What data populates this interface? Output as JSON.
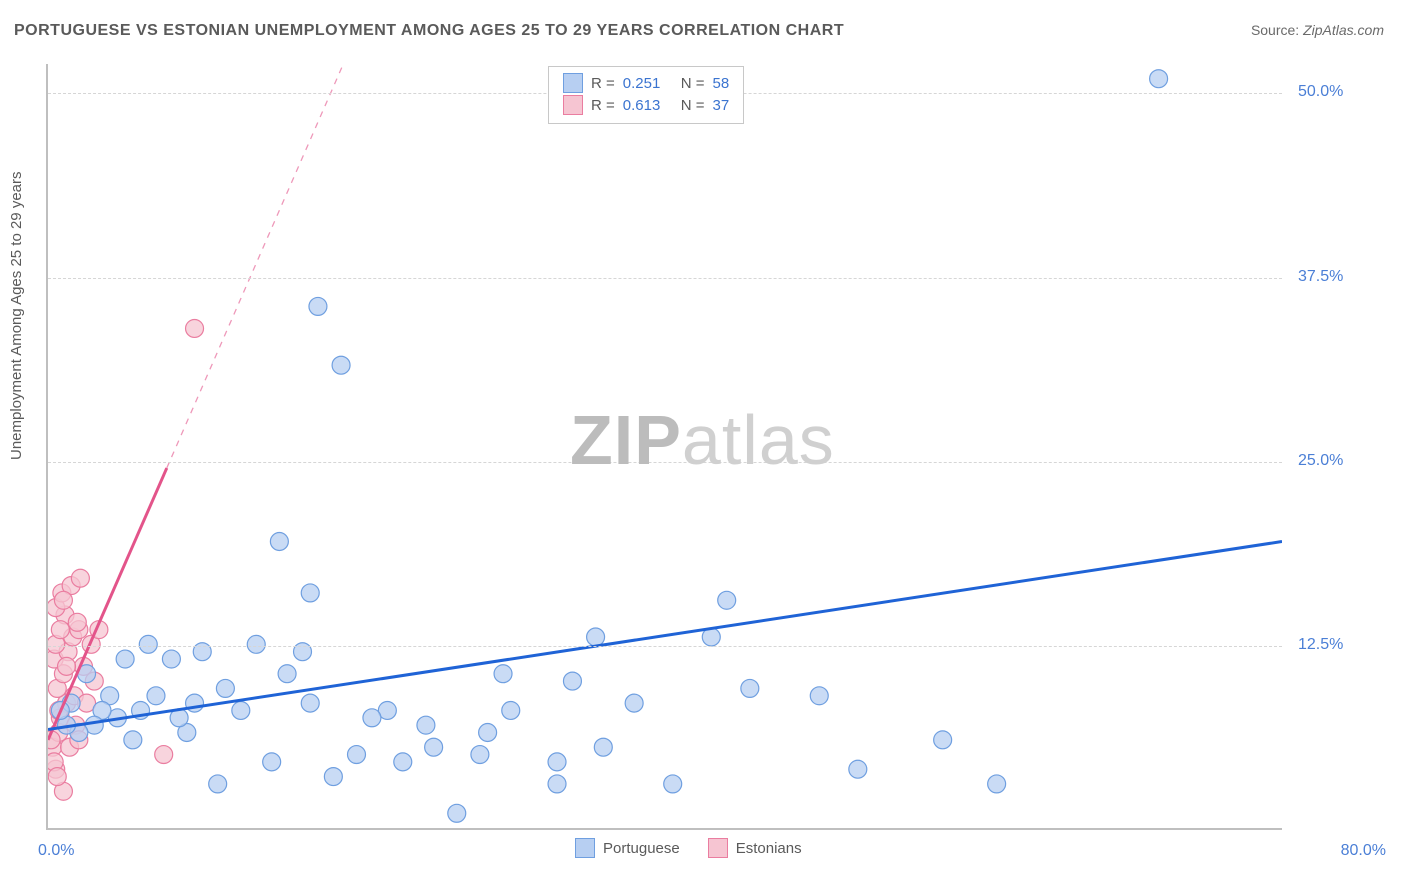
{
  "title": "PORTUGUESE VS ESTONIAN UNEMPLOYMENT AMONG AGES 25 TO 29 YEARS CORRELATION CHART",
  "source_label": "Source:",
  "source_value": "ZipAtlas.com",
  "ylabel": "Unemployment Among Ages 25 to 29 years",
  "watermark_bold": "ZIP",
  "watermark_light": "atlas",
  "chart": {
    "type": "scatter",
    "xlim": [
      0,
      80
    ],
    "ylim": [
      0,
      52
    ],
    "ytick_step": 12.5,
    "yticks": [
      "12.5%",
      "25.0%",
      "37.5%",
      "50.0%"
    ],
    "xtick_min": "0.0%",
    "xtick_max": "80.0%",
    "grid_color": "#d6d6d6",
    "axis_color": "#bfbfbf",
    "background_color": "#ffffff",
    "series": [
      {
        "name": "Portuguese",
        "marker_fill": "#b7cff2",
        "marker_stroke": "#6f9fe0",
        "marker_radius": 9,
        "line_color": "#1f63d6",
        "line_width": 3,
        "line_style": "solid",
        "reg_line": {
          "x1": 0,
          "y1": 6.7,
          "x2": 80,
          "y2": 19.5
        },
        "r": "0.251",
        "n": "58",
        "points": [
          [
            72.0,
            51.0
          ],
          [
            17.5,
            35.5
          ],
          [
            19.0,
            31.5
          ],
          [
            44.0,
            15.5
          ],
          [
            43.0,
            13.0
          ],
          [
            15.0,
            19.5
          ],
          [
            17.0,
            16.0
          ],
          [
            52.5,
            4.0
          ],
          [
            58.0,
            6.0
          ],
          [
            61.5,
            3.0
          ],
          [
            50.0,
            9.0
          ],
          [
            45.5,
            9.5
          ],
          [
            40.5,
            3.0
          ],
          [
            36.0,
            5.5
          ],
          [
            33.0,
            3.0
          ],
          [
            33.0,
            4.5
          ],
          [
            30.0,
            8.0
          ],
          [
            29.5,
            10.5
          ],
          [
            28.0,
            5.0
          ],
          [
            28.5,
            6.5
          ],
          [
            26.5,
            1.0
          ],
          [
            25.0,
            5.5
          ],
          [
            24.5,
            7.0
          ],
          [
            23.0,
            4.5
          ],
          [
            22.0,
            8.0
          ],
          [
            21.0,
            7.5
          ],
          [
            20.0,
            5.0
          ],
          [
            18.5,
            3.5
          ],
          [
            17.0,
            8.5
          ],
          [
            16.5,
            12.0
          ],
          [
            15.5,
            10.5
          ],
          [
            14.5,
            4.5
          ],
          [
            13.5,
            12.5
          ],
          [
            12.5,
            8.0
          ],
          [
            11.5,
            9.5
          ],
          [
            11.0,
            3.0
          ],
          [
            10.0,
            12.0
          ],
          [
            9.5,
            8.5
          ],
          [
            9.0,
            6.5
          ],
          [
            8.5,
            7.5
          ],
          [
            8.0,
            11.5
          ],
          [
            7.0,
            9.0
          ],
          [
            6.5,
            12.5
          ],
          [
            6.0,
            8.0
          ],
          [
            5.5,
            6.0
          ],
          [
            5.0,
            11.5
          ],
          [
            4.5,
            7.5
          ],
          [
            4.0,
            9.0
          ],
          [
            3.5,
            8.0
          ],
          [
            3.0,
            7.0
          ],
          [
            2.5,
            10.5
          ],
          [
            2.0,
            6.5
          ],
          [
            1.5,
            8.5
          ],
          [
            1.2,
            7.0
          ],
          [
            0.8,
            8.0
          ],
          [
            38.0,
            8.5
          ],
          [
            35.5,
            13.0
          ],
          [
            34.0,
            10.0
          ]
        ]
      },
      {
        "name": "Estonians",
        "marker_fill": "#f6c5d2",
        "marker_stroke": "#ea7da0",
        "marker_radius": 9,
        "line_color": "#e3548a",
        "line_width": 3,
        "line_style": "solid",
        "dashed_extend": true,
        "reg_line": {
          "x1": 0,
          "y1": 6.0,
          "x2": 7.7,
          "y2": 24.5
        },
        "r": "0.613",
        "n": "37",
        "points": [
          [
            9.5,
            34.0
          ],
          [
            7.5,
            5.0
          ],
          [
            1.0,
            2.5
          ],
          [
            0.5,
            4.0
          ],
          [
            0.3,
            5.5
          ],
          [
            0.7,
            6.5
          ],
          [
            0.8,
            7.5
          ],
          [
            1.2,
            8.5
          ],
          [
            0.6,
            9.5
          ],
          [
            1.0,
            10.5
          ],
          [
            0.4,
            11.5
          ],
          [
            1.3,
            12.0
          ],
          [
            1.6,
            13.0
          ],
          [
            2.0,
            13.5
          ],
          [
            1.1,
            14.5
          ],
          [
            0.5,
            15.0
          ],
          [
            0.9,
            16.0
          ],
          [
            1.5,
            16.5
          ],
          [
            2.1,
            17.0
          ],
          [
            0.7,
            8.0
          ],
          [
            1.7,
            9.0
          ],
          [
            2.3,
            11.0
          ],
          [
            2.8,
            12.5
          ],
          [
            3.0,
            10.0
          ],
          [
            3.3,
            13.5
          ],
          [
            0.2,
            6.0
          ],
          [
            0.4,
            4.5
          ],
          [
            0.6,
            3.5
          ],
          [
            1.4,
            5.5
          ],
          [
            1.8,
            7.0
          ],
          [
            2.5,
            8.5
          ],
          [
            2.0,
            6.0
          ],
          [
            1.2,
            11.0
          ],
          [
            0.5,
            12.5
          ],
          [
            0.8,
            13.5
          ],
          [
            1.9,
            14.0
          ],
          [
            1.0,
            15.5
          ]
        ]
      }
    ]
  },
  "legend_top_labels": {
    "r": "R =",
    "n": "N ="
  },
  "legend_bottom": [
    {
      "swatch_fill": "#b7cff2",
      "swatch_stroke": "#6f9fe0",
      "label": "Portuguese"
    },
    {
      "swatch_fill": "#f6c5d2",
      "swatch_stroke": "#ea7da0",
      "label": "Estonians"
    }
  ]
}
